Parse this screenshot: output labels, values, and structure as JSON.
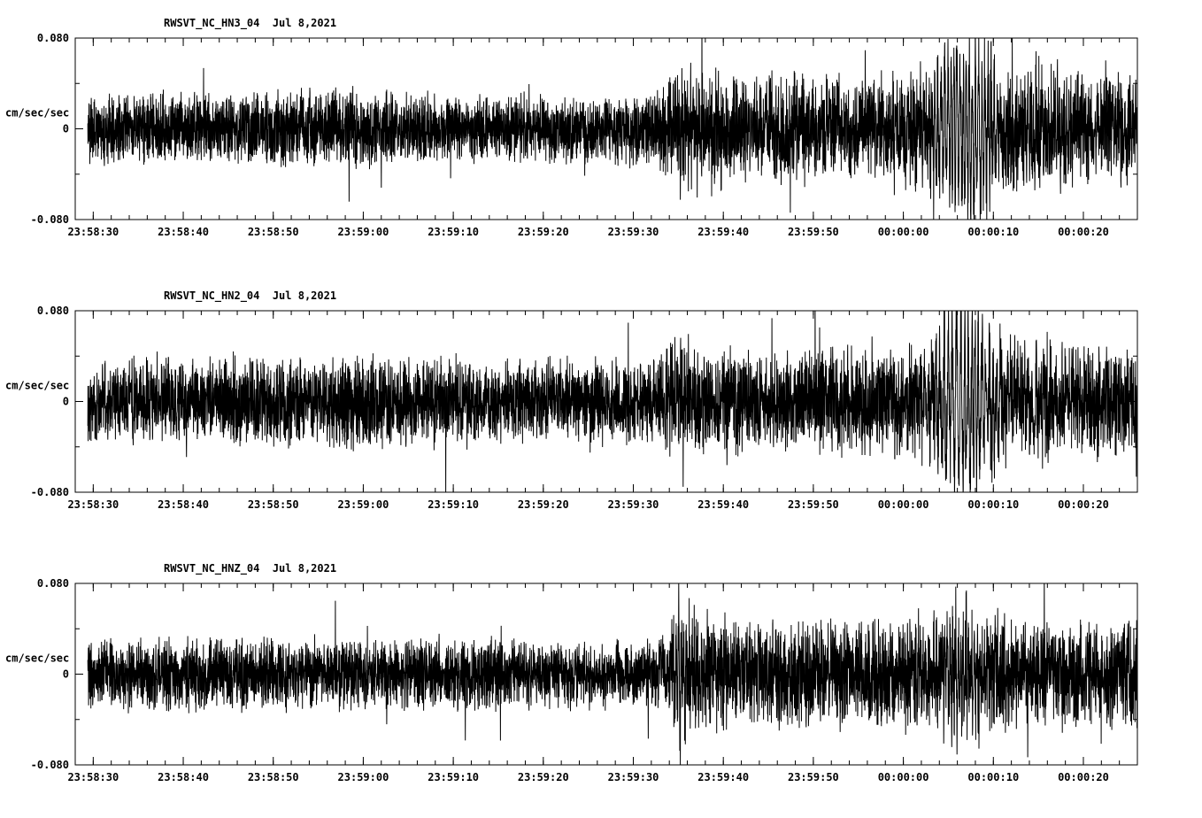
{
  "page": {
    "background": "#ffffff",
    "description": "Three-panel seismogram strip chart, station RWSVT network NC, Jul 8 2021"
  },
  "chart_data": {
    "type": "line",
    "kind": "seismogram-multipanel",
    "line_color": "#000000",
    "x_axis": {
      "range_seconds": [
        0,
        118
      ],
      "start_time_at_left_edge": "23:58:28",
      "major_tick_seconds": [
        2,
        12,
        22,
        32,
        42,
        52,
        62,
        72,
        82,
        92,
        102,
        112
      ],
      "minor_tick_step_seconds": 2,
      "tick_labels": [
        "23:58:30",
        "23:58:40",
        "23:58:50",
        "23:59:00",
        "23:59:10",
        "23:59:20",
        "23:59:30",
        "23:59:40",
        "23:59:50",
        "00:00:00",
        "00:00:10",
        "00:00:20"
      ]
    },
    "y_axis": {
      "limits": [
        -0.08,
        0.08
      ],
      "major_ticks": [
        0.08,
        0,
        -0.08
      ],
      "tick_labels": [
        "0.080",
        "0",
        "-0.080"
      ],
      "minor_ticks": [
        0.04,
        -0.04
      ],
      "unit_label": "cm/sec/sec"
    },
    "panels": [
      {
        "name": "RWSVT_NC_HN3_04",
        "date": "Jul 8,2021",
        "title": "RWSVT_NC_HN3_04  Jul 8,2021",
        "seed": 11,
        "osc_freq_hz": 3.0,
        "envelope_cm_s2": [
          [
            0,
            0.02
          ],
          [
            18,
            0.02
          ],
          [
            26,
            0.022
          ],
          [
            31,
            0.024
          ],
          [
            36,
            0.021
          ],
          [
            45,
            0.02
          ],
          [
            55,
            0.019
          ],
          [
            64,
            0.02
          ],
          [
            65.5,
            0.026
          ],
          [
            67,
            0.04
          ],
          [
            69,
            0.042
          ],
          [
            71,
            0.036
          ],
          [
            74,
            0.031
          ],
          [
            79,
            0.03
          ],
          [
            85,
            0.031
          ],
          [
            90,
            0.033
          ],
          [
            93,
            0.036
          ],
          [
            95,
            0.052
          ],
          [
            96.5,
            0.07
          ],
          [
            98,
            0.078
          ],
          [
            100,
            0.072
          ],
          [
            102,
            0.058
          ],
          [
            103.5,
            0.047
          ],
          [
            105,
            0.045
          ],
          [
            107,
            0.049
          ],
          [
            109,
            0.042
          ],
          [
            111,
            0.036
          ],
          [
            114,
            0.032
          ],
          [
            118,
            0.03
          ]
        ]
      },
      {
        "name": "RWSVT_NC_HN2_04",
        "date": "Jul 8,2021",
        "title": "RWSVT_NC_HN2_04  Jul 8,2021",
        "seed": 22,
        "osc_freq_hz": 2.4,
        "envelope_cm_s2": [
          [
            0,
            0.023
          ],
          [
            10,
            0.024
          ],
          [
            20,
            0.025
          ],
          [
            27,
            0.027
          ],
          [
            33,
            0.028
          ],
          [
            39,
            0.025
          ],
          [
            46,
            0.023
          ],
          [
            56,
            0.024
          ],
          [
            64,
            0.023
          ],
          [
            65.5,
            0.03
          ],
          [
            66.5,
            0.048
          ],
          [
            68,
            0.034
          ],
          [
            71,
            0.029
          ],
          [
            77,
            0.029
          ],
          [
            84,
            0.03
          ],
          [
            89,
            0.031
          ],
          [
            93,
            0.035
          ],
          [
            95,
            0.045
          ],
          [
            96.5,
            0.068
          ],
          [
            97.5,
            0.08
          ],
          [
            99.5,
            0.074
          ],
          [
            101.5,
            0.06
          ],
          [
            103,
            0.05
          ],
          [
            105,
            0.044
          ],
          [
            107,
            0.044
          ],
          [
            110,
            0.038
          ],
          [
            113,
            0.034
          ],
          [
            118,
            0.031
          ]
        ]
      },
      {
        "name": "RWSVT_NC_HNZ_04",
        "date": "Jul 8,2021",
        "title": "RWSVT_NC_HNZ_04  Jul 8,2021",
        "seed": 33,
        "osc_freq_hz": 3.4,
        "envelope_cm_s2": [
          [
            0,
            0.02
          ],
          [
            12,
            0.021
          ],
          [
            24,
            0.021
          ],
          [
            36,
            0.02
          ],
          [
            48,
            0.02
          ],
          [
            58,
            0.019
          ],
          [
            65,
            0.02
          ],
          [
            66.2,
            0.026
          ],
          [
            67,
            0.07
          ],
          [
            67.8,
            0.052
          ],
          [
            69,
            0.042
          ],
          [
            71,
            0.036
          ],
          [
            74,
            0.033
          ],
          [
            79,
            0.031
          ],
          [
            85,
            0.03
          ],
          [
            90,
            0.031
          ],
          [
            94,
            0.036
          ],
          [
            96,
            0.046
          ],
          [
            98,
            0.058
          ],
          [
            99.5,
            0.052
          ],
          [
            101,
            0.044
          ],
          [
            103,
            0.038
          ],
          [
            106,
            0.034
          ],
          [
            110,
            0.032
          ],
          [
            114,
            0.031
          ],
          [
            118,
            0.03
          ]
        ]
      }
    ]
  }
}
